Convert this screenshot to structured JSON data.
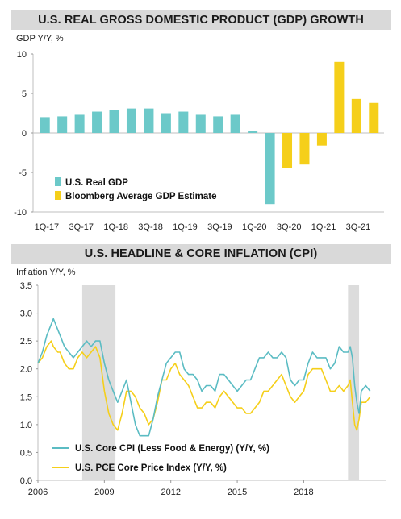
{
  "chart_data": [
    {
      "type": "bar",
      "title": "U.S. REAL GROSS DOMESTIC PRODUCT (GDP) GROWTH",
      "ylabel": "GDP Y/Y, %",
      "ylim": [
        -10,
        10
      ],
      "yticks": [
        10,
        5,
        0,
        -5,
        -10
      ],
      "xtick_labels": [
        "1Q-17",
        "3Q-17",
        "1Q-18",
        "3Q-18",
        "1Q-19",
        "3Q-19",
        "1Q-20",
        "3Q-20",
        "1Q-21",
        "3Q-21"
      ],
      "categories": [
        "1Q-17",
        "2Q-17",
        "3Q-17",
        "4Q-17",
        "1Q-18",
        "2Q-18",
        "3Q-18",
        "4Q-18",
        "1Q-19",
        "2Q-19",
        "3Q-19",
        "4Q-19",
        "1Q-20",
        "2Q-20",
        "3Q-20",
        "4Q-20",
        "1Q-21",
        "2Q-21",
        "3Q-21",
        "4Q-21"
      ],
      "series": [
        {
          "name": "U.S. Real GDP",
          "color": "#6cc9c9",
          "values": [
            2.0,
            2.1,
            2.3,
            2.7,
            2.9,
            3.1,
            3.1,
            2.5,
            2.7,
            2.3,
            2.1,
            2.3,
            0.3,
            -9.0,
            null,
            null,
            null,
            null,
            null,
            null
          ]
        },
        {
          "name": "Bloomberg Average GDP Estimate",
          "color": "#f5cf1a",
          "values": [
            null,
            null,
            null,
            null,
            null,
            null,
            null,
            null,
            null,
            null,
            null,
            null,
            null,
            null,
            -4.4,
            -4.0,
            -1.6,
            9.0,
            4.3,
            3.8
          ]
        }
      ],
      "legend_position": "bottom-left",
      "grid": false
    },
    {
      "type": "line",
      "title": "U.S. HEADLINE & CORE INFLATION (CPI)",
      "ylabel": "Inflation Y/Y, %",
      "ylim": [
        0.0,
        3.5
      ],
      "yticks": [
        "3.5",
        "3.0",
        "2.5",
        "2.0",
        "1.5",
        "1.0",
        "0.5",
        "0.0"
      ],
      "xlim": [
        2006.0,
        2021.7
      ],
      "xticks": [
        2006,
        2009,
        2012,
        2015,
        2018
      ],
      "xtick_labels": [
        "2006",
        "2009",
        "2012",
        "2015",
        "2018"
      ],
      "shaded_periods": [
        [
          2008.0,
          2009.5
        ],
        [
          2020.0,
          2020.5
        ]
      ],
      "series": [
        {
          "name": "U.S. Core CPI (Less Food & Energy) (Y/Y, %)",
          "color": "#5bbcc3",
          "x": [
            2006.0,
            2006.2,
            2006.4,
            2006.6,
            2006.7,
            2006.9,
            2007.0,
            2007.2,
            2007.4,
            2007.6,
            2007.8,
            2008.0,
            2008.2,
            2008.4,
            2008.6,
            2008.8,
            2009.0,
            2009.2,
            2009.4,
            2009.6,
            2009.8,
            2010.0,
            2010.2,
            2010.4,
            2010.6,
            2010.8,
            2011.0,
            2011.2,
            2011.4,
            2011.6,
            2011.8,
            2012.0,
            2012.2,
            2012.4,
            2012.6,
            2012.8,
            2013.0,
            2013.2,
            2013.4,
            2013.6,
            2013.8,
            2014.0,
            2014.2,
            2014.4,
            2014.6,
            2014.8,
            2015.0,
            2015.2,
            2015.4,
            2015.6,
            2015.8,
            2016.0,
            2016.2,
            2016.4,
            2016.6,
            2016.8,
            2017.0,
            2017.2,
            2017.4,
            2017.6,
            2017.8,
            2018.0,
            2018.2,
            2018.4,
            2018.6,
            2018.8,
            2019.0,
            2019.2,
            2019.4,
            2019.6,
            2019.8,
            2020.0,
            2020.1,
            2020.2,
            2020.3,
            2020.4,
            2020.5,
            2020.6,
            2020.8,
            2021.0
          ],
          "values": [
            2.1,
            2.3,
            2.6,
            2.8,
            2.9,
            2.7,
            2.6,
            2.4,
            2.3,
            2.2,
            2.3,
            2.4,
            2.5,
            2.4,
            2.5,
            2.5,
            2.1,
            1.8,
            1.6,
            1.4,
            1.6,
            1.8,
            1.4,
            1.0,
            0.8,
            0.8,
            0.8,
            1.1,
            1.5,
            1.8,
            2.1,
            2.2,
            2.3,
            2.3,
            2.0,
            1.9,
            1.9,
            1.8,
            1.6,
            1.7,
            1.7,
            1.6,
            1.9,
            1.9,
            1.8,
            1.7,
            1.6,
            1.7,
            1.8,
            1.8,
            2.0,
            2.2,
            2.2,
            2.3,
            2.2,
            2.2,
            2.3,
            2.2,
            1.8,
            1.7,
            1.8,
            1.8,
            2.1,
            2.3,
            2.2,
            2.2,
            2.2,
            2.0,
            2.1,
            2.4,
            2.3,
            2.3,
            2.4,
            2.2,
            1.7,
            1.4,
            1.2,
            1.6,
            1.7,
            1.6
          ]
        },
        {
          "name": "U.S. PCE Core Price Index (Y/Y, %)",
          "color": "#f5cf1a",
          "x": [
            2006.0,
            2006.2,
            2006.4,
            2006.6,
            2006.7,
            2006.9,
            2007.0,
            2007.2,
            2007.4,
            2007.6,
            2007.8,
            2008.0,
            2008.2,
            2008.4,
            2008.6,
            2008.8,
            2009.0,
            2009.2,
            2009.4,
            2009.6,
            2009.8,
            2010.0,
            2010.2,
            2010.4,
            2010.6,
            2010.8,
            2011.0,
            2011.2,
            2011.4,
            2011.6,
            2011.8,
            2012.0,
            2012.2,
            2012.4,
            2012.6,
            2012.8,
            2013.0,
            2013.2,
            2013.4,
            2013.6,
            2013.8,
            2014.0,
            2014.2,
            2014.4,
            2014.6,
            2014.8,
            2015.0,
            2015.2,
            2015.4,
            2015.6,
            2015.8,
            2016.0,
            2016.2,
            2016.4,
            2016.6,
            2016.8,
            2017.0,
            2017.2,
            2017.4,
            2017.6,
            2017.8,
            2018.0,
            2018.2,
            2018.4,
            2018.6,
            2018.8,
            2019.0,
            2019.2,
            2019.4,
            2019.6,
            2019.8,
            2020.0,
            2020.1,
            2020.2,
            2020.3,
            2020.4,
            2020.5,
            2020.6,
            2020.8,
            2021.0
          ],
          "values": [
            2.1,
            2.2,
            2.4,
            2.5,
            2.4,
            2.3,
            2.3,
            2.1,
            2.0,
            2.0,
            2.2,
            2.3,
            2.2,
            2.3,
            2.4,
            2.2,
            1.6,
            1.2,
            1.0,
            0.9,
            1.2,
            1.6,
            1.6,
            1.5,
            1.3,
            1.2,
            1.0,
            1.1,
            1.4,
            1.8,
            1.8,
            2.0,
            2.1,
            1.9,
            1.8,
            1.7,
            1.5,
            1.3,
            1.3,
            1.4,
            1.4,
            1.3,
            1.5,
            1.6,
            1.5,
            1.4,
            1.3,
            1.3,
            1.2,
            1.2,
            1.3,
            1.4,
            1.6,
            1.6,
            1.7,
            1.8,
            1.9,
            1.7,
            1.5,
            1.4,
            1.5,
            1.6,
            1.9,
            2.0,
            2.0,
            2.0,
            1.8,
            1.6,
            1.6,
            1.7,
            1.6,
            1.7,
            1.8,
            1.4,
            1.0,
            0.9,
            1.1,
            1.4,
            1.4,
            1.5
          ]
        }
      ],
      "legend_position": "bottom-left",
      "grid": false
    }
  ]
}
